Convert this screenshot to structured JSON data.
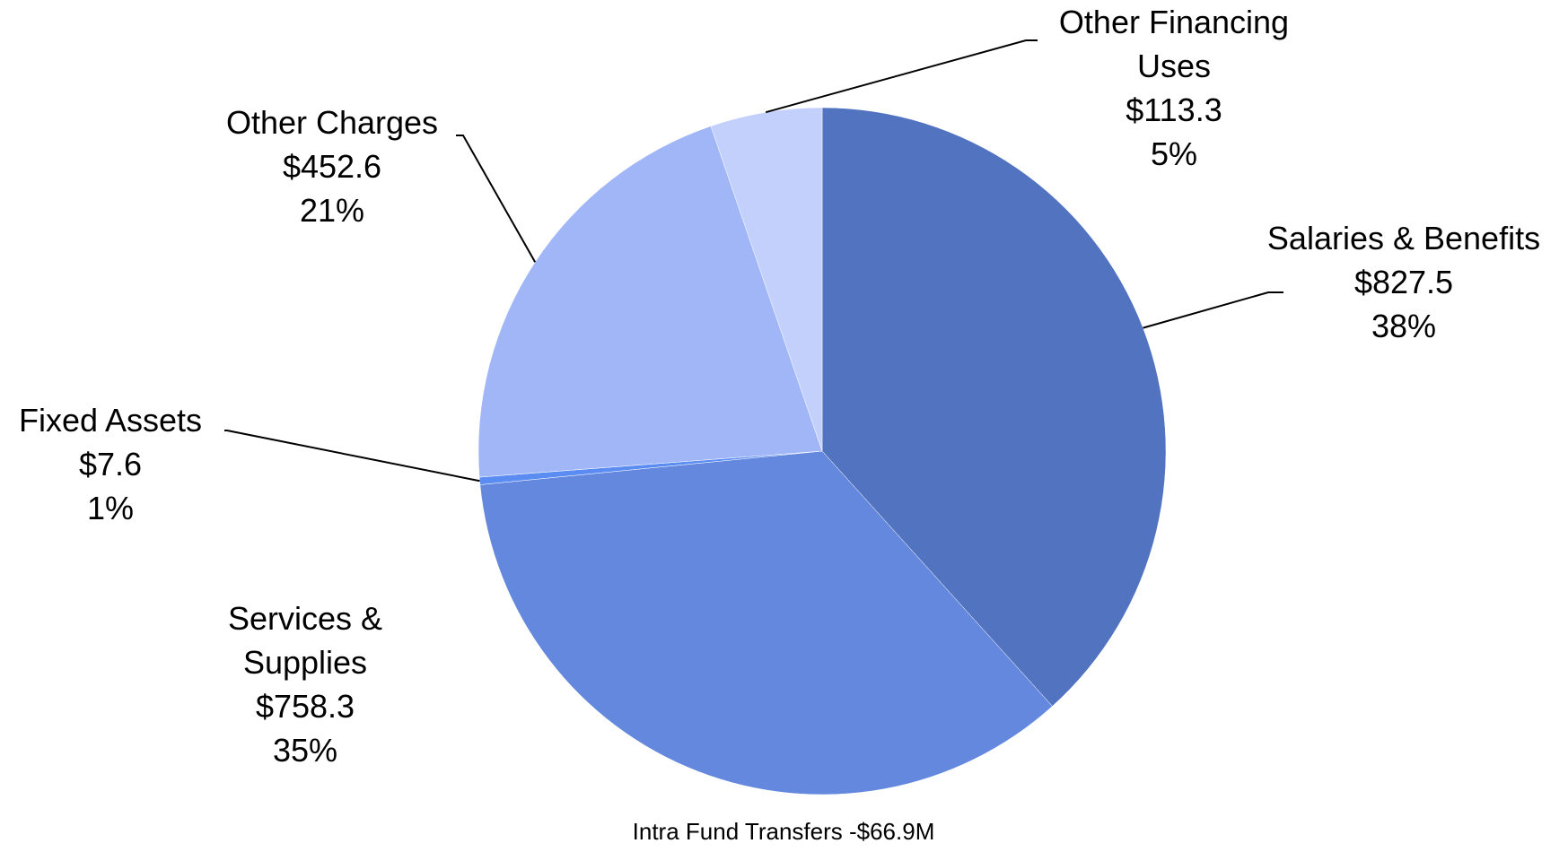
{
  "chart_data": {
    "type": "pie",
    "categories": [
      "Salaries & Benefits",
      "Services & Supplies",
      "Fixed Assets",
      "Other Charges",
      "Other Financing Uses"
    ],
    "values": [
      827.5,
      758.3,
      7.6,
      452.6,
      113.3
    ],
    "value_labels": [
      "$827.5",
      "$758.3",
      "$7.6",
      "$452.6",
      "$113.3"
    ],
    "percents": [
      38,
      35,
      1,
      21,
      5
    ],
    "percent_labels": [
      "38%",
      "35%",
      "1%",
      "21%",
      "5%"
    ],
    "colors": [
      "#5273bf",
      "#6388dd",
      "#5b8cf2",
      "#a0b6f7",
      "#c2d0fb"
    ],
    "footnote": "Intra Fund Transfers -$66.9M"
  }
}
